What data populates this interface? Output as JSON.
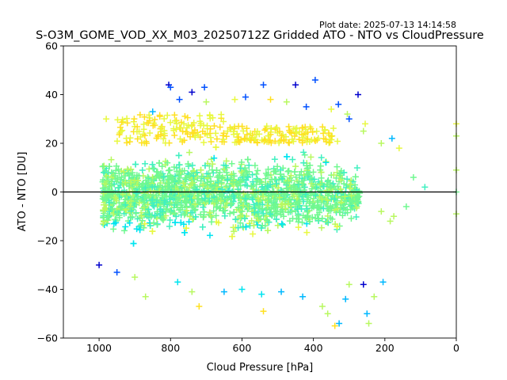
{
  "chart_data": {
    "type": "scatter",
    "title": "S-O3M_GOME_VOD_XX_M03_20250712Z Gridded ATO - NTO vs CloudPressure",
    "subtitle": "Plot date: 2025-07-13 14:14:58",
    "xlabel": "Cloud Pressure [hPa]",
    "ylabel": "ATO - NTO [DU]",
    "xlim": [
      1100,
      0
    ],
    "ylim": [
      -60,
      60
    ],
    "x_inverted": true,
    "xticks": [
      1000,
      800,
      600,
      400,
      200,
      0
    ],
    "yticks": [
      -60,
      -40,
      -20,
      0,
      20,
      40,
      60
    ],
    "reference_line_y": 0,
    "marker": "+",
    "grid": false,
    "colormap": "jet",
    "colors": [
      "#0000cd",
      "#0050ff",
      "#00b8ff",
      "#00e4f0",
      "#40f0c0",
      "#70f890",
      "#b8f860",
      "#e8f840",
      "#ffe020"
    ],
    "series": [
      {
        "points": [
          [
            805,
            44
          ],
          [
            800,
            43
          ],
          [
            705,
            43
          ],
          [
            540,
            44
          ],
          [
            450,
            44
          ],
          [
            395,
            46
          ],
          [
            475,
            37
          ],
          [
            740,
            41
          ],
          [
            775,
            38
          ],
          [
            980,
            30
          ],
          [
            330,
            36
          ],
          [
            305,
            32
          ],
          [
            275,
            40
          ],
          [
            210,
            20
          ],
          [
            180,
            22
          ],
          [
            160,
            18
          ],
          [
            120,
            6
          ],
          [
            88,
            2
          ],
          [
            0,
            28
          ],
          [
            0,
            23
          ],
          [
            0,
            9
          ],
          [
            0,
            0
          ],
          [
            0,
            -9
          ],
          [
            1000,
            -30
          ],
          [
            950,
            -33
          ],
          [
            900,
            -35
          ],
          [
            870,
            -43
          ],
          [
            780,
            -37
          ],
          [
            740,
            -41
          ],
          [
            720,
            -47
          ],
          [
            650,
            -41
          ],
          [
            600,
            -40
          ],
          [
            545,
            -42
          ],
          [
            540,
            -49
          ],
          [
            490,
            -41
          ],
          [
            430,
            -43
          ],
          [
            375,
            -47
          ],
          [
            360,
            -50
          ],
          [
            340,
            -55
          ],
          [
            328,
            -54
          ],
          [
            310,
            -44
          ],
          [
            300,
            -38
          ],
          [
            260,
            -38
          ],
          [
            250,
            -50
          ],
          [
            245,
            -54
          ],
          [
            230,
            -43
          ],
          [
            205,
            -37
          ],
          [
            185,
            -12
          ],
          [
            175,
            -10
          ],
          [
            140,
            -6
          ],
          [
            210,
            -8
          ],
          [
            260,
            25
          ],
          [
            255,
            28
          ],
          [
            850,
            33
          ],
          [
            830,
            31
          ],
          [
            700,
            37
          ],
          [
            620,
            38
          ],
          [
            590,
            39
          ],
          [
            520,
            38
          ],
          [
            420,
            35
          ],
          [
            350,
            34
          ],
          [
            300,
            30
          ]
        ]
      }
    ]
  }
}
